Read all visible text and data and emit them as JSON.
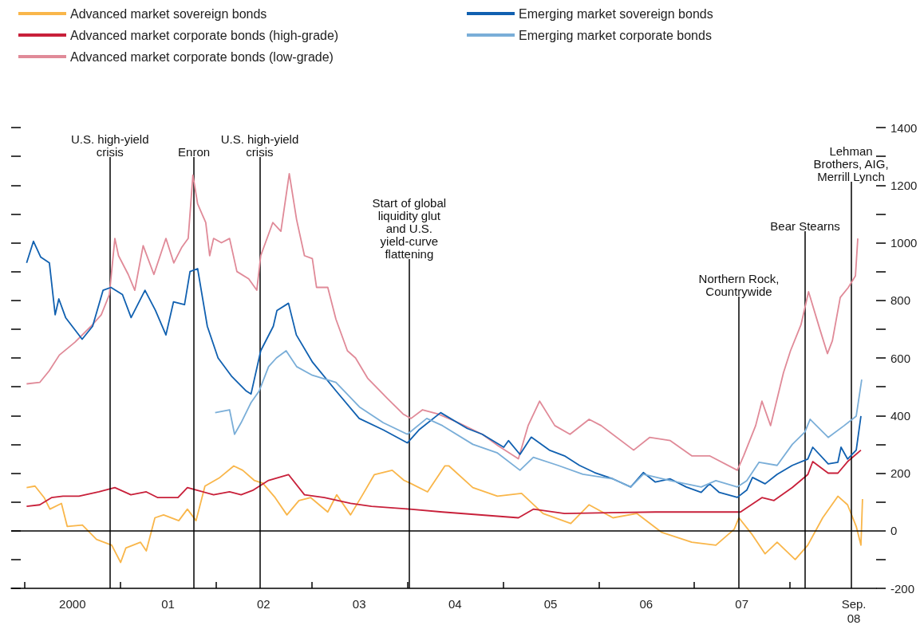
{
  "chart_data": {
    "type": "line",
    "legend": "top left",
    "grid": false,
    "marker": "none",
    "line_style": "solid",
    "xlim": [
      "1999-11-10",
      "2008-11-25"
    ],
    "ylim": [
      -200,
      1400
    ],
    "xticks": [
      {
        "value": "2000-01-01",
        "label": null
      },
      {
        "value": "2001-01-01",
        "label": null
      },
      {
        "value": "2002-01-01",
        "label": null
      },
      {
        "value": "2003-01-01",
        "label": null
      },
      {
        "value": "2004-01-01",
        "label": null
      },
      {
        "value": "2005-01-01",
        "label": null
      },
      {
        "value": "2006-01-01",
        "label": null
      },
      {
        "value": "2007-01-01",
        "label": null
      },
      {
        "value": "2008-01-01",
        "label": null
      },
      {
        "value": "2000-07-01",
        "label": "2000"
      },
      {
        "value": "2001-07-01",
        "label": "01"
      },
      {
        "value": "2002-07-01",
        "label": "02"
      },
      {
        "value": "2003-07-01",
        "label": "03"
      },
      {
        "value": "2004-07-01",
        "label": "04"
      },
      {
        "value": "2005-07-01",
        "label": "05"
      },
      {
        "value": "2006-07-01",
        "label": "06"
      },
      {
        "value": "2007-07-01",
        "label": "07"
      },
      {
        "value": "2008-09-01",
        "label": "Sep.\n08"
      }
    ],
    "yticks": [
      -200,
      {
        "value": -100,
        "label": null
      },
      0,
      {
        "value": 100,
        "label": null
      },
      200,
      {
        "value": 300,
        "label": null
      },
      400,
      {
        "value": 500,
        "label": null
      },
      600,
      {
        "value": 700,
        "label": null
      },
      800,
      {
        "value": 900,
        "label": null
      },
      1000,
      {
        "value": 1100,
        "label": null
      },
      1200,
      {
        "value": 1300,
        "label": null
      },
      1400
    ],
    "ref_lines": [
      {
        "axis": "y",
        "value": 0,
        "label": null
      },
      {
        "axis": "x",
        "value": "2000-11-21",
        "label": "U.S. high-yield\ncrisis"
      },
      {
        "axis": "x",
        "value": "2001-10-08",
        "label": "Enron"
      },
      {
        "axis": "x",
        "value": "2002-06-16",
        "label": "U.S. high-yield\ncrisis"
      },
      {
        "axis": "x",
        "value": "2004-01-08",
        "label": "Start of global\nliquidity glut\nand U.S.\nyield-curve\nflattening"
      },
      {
        "axis": "x",
        "value": "2007-06-20",
        "label": "Northern Rock,\nCountrywide"
      },
      {
        "axis": "x",
        "value": "2008-02-28",
        "label": "Bear Stearns"
      },
      {
        "axis": "x",
        "value": "2008-08-21",
        "label": "Lehman\nBrothers, AIG,\nMerrill Lynch"
      }
    ],
    "series": [
      {
        "name": "Advanced market sovereign bonds",
        "color": "#f9b64a",
        "x": [
          "2000-01-08",
          "2000-02-09",
          "2000-03-15",
          "2000-04-06",
          "2000-05-20",
          "2000-06-11",
          "2000-08-08",
          "2000-10-01",
          "2000-11-28",
          "2001-01-01",
          "2001-01-21",
          "2001-03-18",
          "2001-04-09",
          "2001-05-12",
          "2001-06-14",
          "2001-08-11",
          "2001-09-13",
          "2001-10-16",
          "2001-11-19",
          "2002-01-15",
          "2002-03-09",
          "2002-04-12",
          "2002-05-26",
          "2002-06-28",
          "2002-08-14",
          "2002-09-28",
          "2002-11-13",
          "2002-12-28",
          "2003-03-03",
          "2003-04-06",
          "2003-05-29",
          "2003-07-14",
          "2003-08-28",
          "2003-11-04",
          "2003-12-19",
          "2004-01-12",
          "2004-03-18",
          "2004-05-23",
          "2004-06-08",
          "2004-09-07",
          "2004-12-10",
          "2005-03-12",
          "2005-06-02",
          "2005-09-16",
          "2005-11-25",
          "2006-02-24",
          "2006-05-26",
          "2006-08-28",
          "2006-12-22",
          "2007-03-24",
          "2007-06-02",
          "2007-06-20",
          "2007-08-11",
          "2007-09-28",
          "2007-11-13",
          "2008-01-21",
          "2008-03-09",
          "2008-05-05",
          "2008-07-02",
          "2008-08-08",
          "2008-09-10",
          "2008-09-28",
          "2008-10-04"
        ],
        "values": [
          150,
          155,
          115,
          75,
          95,
          15,
          20,
          -30,
          -50,
          -110,
          -60,
          -40,
          -70,
          45,
          55,
          35,
          75,
          35,
          155,
          185,
          225,
          210,
          175,
          165,
          115,
          55,
          105,
          115,
          65,
          125,
          55,
          125,
          195,
          210,
          175,
          165,
          135,
          225,
          225,
          150,
          120,
          130,
          60,
          25,
          90,
          45,
          60,
          -5,
          -40,
          -50,
          5,
          45,
          -15,
          -80,
          -40,
          -100,
          -50,
          45,
          120,
          90,
          15,
          -50,
          110
        ]
      },
      {
        "name": "Advanced market corporate bonds (high-grade)",
        "color": "#c8203a",
        "x": [
          "2000-01-08",
          "2000-02-27",
          "2000-04-12",
          "2000-05-26",
          "2000-07-26",
          "2000-10-10",
          "2000-12-10",
          "2001-02-09",
          "2001-04-09",
          "2001-05-23",
          "2001-08-08",
          "2001-09-13",
          "2001-10-22",
          "2001-12-22",
          "2002-02-21",
          "2002-04-06",
          "2002-05-20",
          "2002-07-20",
          "2002-10-04",
          "2002-12-04",
          "2003-02-18",
          "2003-05-29",
          "2003-08-17",
          "2004-01-10",
          "2004-05-14",
          "2005-02-28",
          "2005-04-26",
          "2005-08-23",
          "2006-08-05",
          "2007-06-26",
          "2007-09-16",
          "2007-11-01",
          "2008-01-10",
          "2008-03-09",
          "2008-03-28",
          "2008-05-26",
          "2008-07-02",
          "2008-08-08",
          "2008-09-28"
        ],
        "values": [
          85,
          90,
          115,
          120,
          120,
          135,
          150,
          125,
          135,
          115,
          115,
          150,
          140,
          125,
          135,
          125,
          140,
          175,
          195,
          125,
          115,
          95,
          85,
          75,
          65,
          45,
          75,
          60,
          65,
          65,
          115,
          105,
          150,
          195,
          240,
          200,
          200,
          240,
          280
        ]
      },
      {
        "name": "Advanced market corporate bonds (low-grade)",
        "color": "#e08a98",
        "x": [
          "2000-01-08",
          "2000-02-27",
          "2000-04-03",
          "2000-05-12",
          "2000-07-11",
          "2000-09-10",
          "2000-10-19",
          "2000-11-19",
          "2000-12-10",
          "2000-12-24",
          "2001-01-30",
          "2001-02-24",
          "2001-03-28",
          "2001-05-08",
          "2001-06-23",
          "2001-07-23",
          "2001-08-23",
          "2001-09-16",
          "2001-10-04",
          "2001-10-22",
          "2001-11-22",
          "2001-12-07",
          "2001-12-22",
          "2002-01-21",
          "2002-02-21",
          "2002-03-21",
          "2002-05-05",
          "2002-06-05",
          "2002-06-20",
          "2002-08-05",
          "2002-09-05",
          "2002-10-07",
          "2002-11-04",
          "2002-12-04",
          "2003-01-03",
          "2003-01-19",
          "2003-03-03",
          "2003-04-03",
          "2003-05-17",
          "2003-06-17",
          "2003-08-02",
          "2003-10-16",
          "2003-12-16",
          "2004-01-15",
          "2004-02-28",
          "2004-04-28",
          "2004-07-14",
          "2004-10-13",
          "2004-12-13",
          "2005-02-28",
          "2005-04-06",
          "2005-05-20",
          "2005-07-17",
          "2005-09-13",
          "2005-11-25",
          "2006-01-10",
          "2006-05-14",
          "2006-07-14",
          "2006-10-01",
          "2006-12-22",
          "2007-02-28",
          "2007-06-14",
          "2007-07-08",
          "2007-08-23",
          "2007-09-16",
          "2007-10-19",
          "2007-12-07",
          "2008-01-03",
          "2008-02-12",
          "2008-03-12",
          "2008-04-24",
          "2008-05-23",
          "2008-06-11",
          "2008-07-11",
          "2008-08-11",
          "2008-09-07",
          "2008-09-16"
        ],
        "values": [
          510,
          515,
          555,
          610,
          655,
          710,
          750,
          820,
          1015,
          955,
          890,
          835,
          990,
          890,
          1015,
          930,
          985,
          1015,
          1235,
          1135,
          1070,
          955,
          1015,
          1000,
          1015,
          900,
          875,
          835,
          955,
          1070,
          1040,
          1240,
          1080,
          955,
          945,
          845,
          845,
          735,
          625,
          600,
          530,
          460,
          405,
          390,
          420,
          405,
          375,
          335,
          295,
          250,
          365,
          450,
          365,
          335,
          387,
          365,
          280,
          324,
          313,
          260,
          260,
          210,
          260,
          365,
          450,
          365,
          548,
          625,
          715,
          830,
          700,
          615,
          660,
          810,
          845,
          885,
          1015
        ]
      },
      {
        "name": "Emerging market sovereign bonds",
        "color": "#1060b0",
        "x": [
          "2000-01-08",
          "2000-02-03",
          "2000-03-02",
          "2000-04-04",
          "2000-04-26",
          "2000-05-10",
          "2000-06-05",
          "2000-08-07",
          "2000-09-16",
          "2000-10-26",
          "2000-11-25",
          "2001-01-08",
          "2001-02-10",
          "2001-04-04",
          "2001-05-14",
          "2001-06-23",
          "2001-07-22",
          "2001-09-02",
          "2001-09-23",
          "2001-10-22",
          "2001-11-28",
          "2002-01-08",
          "2002-03-02",
          "2002-04-26",
          "2002-05-14",
          "2002-06-20",
          "2002-08-07",
          "2002-08-21",
          "2002-10-04",
          "2002-11-03",
          "2003-01-04",
          "2003-04-04",
          "2003-07-01",
          "2003-10-01",
          "2004-01-01",
          "2004-02-14",
          "2004-05-07",
          "2004-08-17",
          "2004-10-13",
          "2005-01-03",
          "2005-01-21",
          "2005-03-06",
          "2005-04-18",
          "2005-06-26",
          "2005-08-23",
          "2005-10-19",
          "2005-12-16",
          "2006-02-24",
          "2006-05-03",
          "2006-06-20",
          "2006-08-05",
          "2006-10-01",
          "2006-12-01",
          "2007-01-27",
          "2007-02-28",
          "2007-04-06",
          "2007-06-14",
          "2007-07-20",
          "2007-08-11",
          "2007-09-28",
          "2007-11-13",
          "2008-01-10",
          "2008-03-09",
          "2008-03-28",
          "2008-05-26",
          "2008-07-02",
          "2008-07-14",
          "2008-08-08",
          "2008-09-10",
          "2008-09-28"
        ],
        "values": [
          930,
          1005,
          950,
          930,
          750,
          805,
          740,
          665,
          710,
          835,
          845,
          820,
          740,
          835,
          765,
          680,
          795,
          785,
          900,
          910,
          710,
          600,
          535,
          485,
          475,
          625,
          710,
          765,
          790,
          680,
          585,
          485,
          390,
          350,
          305,
          350,
          410,
          355,
          335,
          290,
          313,
          265,
          325,
          280,
          260,
          227,
          202,
          180,
          152,
          202,
          169,
          180,
          152,
          133,
          163,
          133,
          116,
          141,
          185,
          163,
          196,
          227,
          249,
          290,
          232,
          238,
          290,
          249,
          280,
          398
        ]
      },
      {
        "name": "Emerging market corporate bonds",
        "color": "#7aaed8",
        "x": [
          "2001-12-28",
          "2002-02-21",
          "2002-03-12",
          "2002-04-06",
          "2002-05-14",
          "2002-06-14",
          "2002-07-20",
          "2002-08-19",
          "2002-09-25",
          "2002-11-04",
          "2003-01-03",
          "2003-04-03",
          "2003-07-02",
          "2003-10-01",
          "2004-01-01",
          "2004-03-15",
          "2004-05-14",
          "2004-09-07",
          "2004-12-10",
          "2005-03-06",
          "2005-04-26",
          "2005-07-29",
          "2005-11-01",
          "2006-02-24",
          "2006-05-03",
          "2006-06-20",
          "2006-10-01",
          "2007-01-27",
          "2007-03-24",
          "2007-06-14",
          "2007-07-20",
          "2007-09-05",
          "2007-11-13",
          "2008-01-10",
          "2008-02-27",
          "2008-03-18",
          "2008-05-26",
          "2008-07-26",
          "2008-09-10",
          "2008-10-01"
        ],
        "values": [
          410,
          420,
          335,
          375,
          445,
          485,
          570,
          600,
          625,
          570,
          540,
          515,
          430,
          375,
          335,
          390,
          365,
          300,
          270,
          210,
          255,
          227,
          196,
          180,
          152,
          196,
          174,
          152,
          174,
          152,
          174,
          238,
          227,
          300,
          343,
          387,
          324,
          365,
          398,
          525
        ]
      }
    ]
  }
}
